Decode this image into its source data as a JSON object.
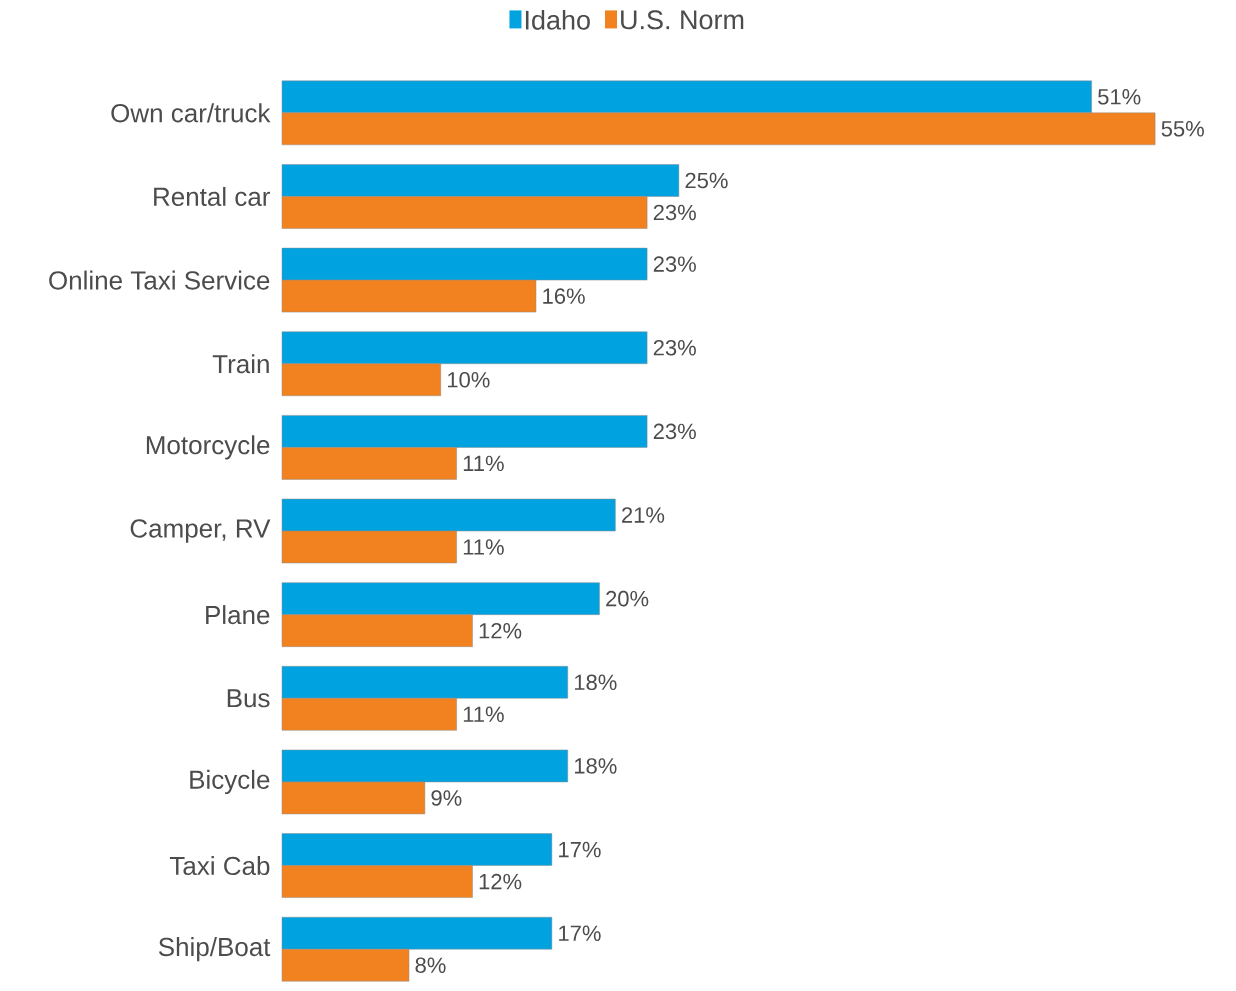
{
  "chart_data": {
    "type": "bar",
    "orientation": "horizontal",
    "categories": [
      "Own car/truck",
      "Rental car",
      "Online Taxi Service",
      "Train",
      "Motorcycle",
      "Camper, RV",
      "Plane",
      "Bus",
      "Bicycle",
      "Taxi Cab",
      "Ship/Boat"
    ],
    "series": [
      {
        "name": "Idaho",
        "color": "#00a2e0",
        "values": [
          51,
          25,
          23,
          23,
          23,
          21,
          20,
          18,
          18,
          17,
          17
        ],
        "value_labels": [
          "51%",
          "25%",
          "23%",
          "23%",
          "23%",
          "21%",
          "20%",
          "18%",
          "18%",
          "17%",
          "17%"
        ]
      },
      {
        "name": "U.S. Norm",
        "color": "#f28220",
        "values": [
          55,
          23,
          16,
          10,
          11,
          11,
          12,
          11,
          9,
          12,
          8
        ],
        "value_labels": [
          "55%",
          "23%",
          "16%",
          "10%",
          "11%",
          "11%",
          "12%",
          "11%",
          "9%",
          "12%",
          "8%"
        ]
      }
    ],
    "legend": "top"
  }
}
